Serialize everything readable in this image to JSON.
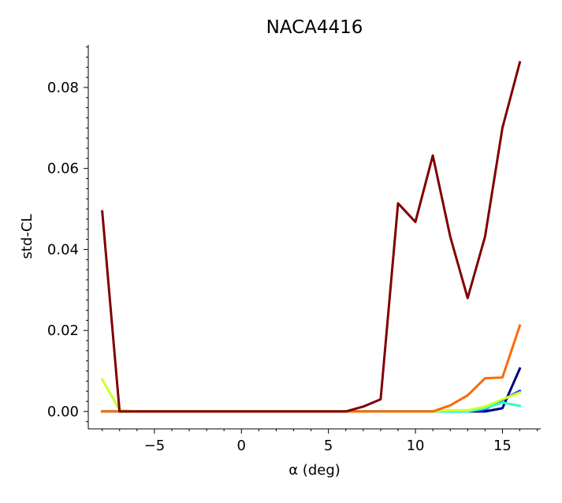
{
  "chart_data": {
    "type": "line",
    "title": "NACA4416",
    "xlabel": "α (deg)",
    "ylabel": "std-CL",
    "xlim": [
      -8.8,
      17.2
    ],
    "ylim": [
      -0.0043,
      0.0905
    ],
    "xticks": [
      -5,
      0,
      5,
      10,
      15
    ],
    "xtick_labels": [
      "−5",
      "0",
      "5",
      "10",
      "15"
    ],
    "yticks": [
      0.0,
      0.02,
      0.04,
      0.06,
      0.08
    ],
    "ytick_labels": [
      "0.00",
      "0.02",
      "0.04",
      "0.06",
      "0.08"
    ],
    "grid": false,
    "legend": "none",
    "series": [
      {
        "color": "#00007f",
        "x": [
          -8,
          -7,
          -6,
          -5,
          -4,
          -3,
          -2,
          -1,
          0,
          1,
          2,
          3,
          4,
          5,
          6,
          7,
          8,
          9,
          10,
          11,
          12,
          13,
          14,
          15,
          16
        ],
        "y": [
          0,
          0,
          0,
          0,
          0,
          0,
          0,
          0,
          0,
          0,
          0,
          0,
          0,
          0,
          0,
          0,
          0,
          0,
          0,
          0,
          0,
          0,
          0,
          0.0008,
          0.0106
        ]
      },
      {
        "color": "#0050ff",
        "x": [
          -8,
          -7,
          -6,
          -5,
          -4,
          -3,
          -2,
          -1,
          0,
          1,
          2,
          3,
          4,
          5,
          6,
          7,
          8,
          9,
          10,
          11,
          12,
          13,
          14,
          15,
          16
        ],
        "y": [
          0,
          0,
          0,
          0,
          0,
          0,
          0,
          0,
          0,
          0,
          0,
          0,
          0,
          0,
          0,
          0,
          0,
          0,
          0,
          0,
          0,
          0,
          0.0005,
          0.0028,
          0.0051
        ]
      },
      {
        "color": "#29ffce",
        "x": [
          -8,
          -7,
          -6,
          -5,
          -4,
          -3,
          -2,
          -1,
          0,
          1,
          2,
          3,
          4,
          5,
          6,
          7,
          8,
          9,
          10,
          11,
          12,
          13,
          14,
          15,
          16
        ],
        "y": [
          0,
          0,
          0,
          0,
          0,
          0,
          0,
          0,
          0,
          0,
          0,
          0,
          0,
          0,
          0,
          0,
          0,
          0,
          0,
          0,
          0,
          0,
          0.0008,
          0.0022,
          0.0014
        ]
      },
      {
        "color": "#ceff29",
        "x": [
          -8,
          -7,
          -6,
          -5,
          -4,
          -3,
          -2,
          -1,
          0,
          1,
          2,
          3,
          4,
          5,
          6,
          7,
          8,
          9,
          10,
          11,
          12,
          13,
          14,
          15,
          16
        ],
        "y": [
          0.0079,
          0.0004,
          0,
          0,
          0,
          0,
          0,
          0,
          0,
          0,
          0,
          0,
          0,
          0,
          0,
          0,
          0,
          0,
          0,
          0,
          0.0003,
          0.0003,
          0.0012,
          0.003,
          0.0047
        ]
      },
      {
        "color": "#ff6800",
        "x": [
          -8,
          -7,
          -6,
          -5,
          -4,
          -3,
          -2,
          -1,
          0,
          1,
          2,
          3,
          4,
          5,
          6,
          7,
          8,
          9,
          10,
          11,
          12,
          13,
          14,
          15,
          16
        ],
        "y": [
          0,
          0,
          0,
          0,
          0,
          0,
          0,
          0,
          0,
          0,
          0,
          0,
          0,
          0,
          0,
          0,
          0,
          0,
          0,
          0,
          0.0015,
          0.004,
          0.0082,
          0.0084,
          0.0212
        ]
      },
      {
        "color": "#7f0000",
        "x": [
          -8,
          -7,
          -6,
          -5,
          -4,
          -3,
          -2,
          -1,
          0,
          1,
          2,
          3,
          4,
          5,
          6,
          7,
          8,
          9,
          10,
          11,
          12,
          13,
          14,
          15,
          16
        ],
        "y": [
          0.0494,
          0,
          0,
          0,
          0,
          0,
          0,
          0,
          0,
          0,
          0,
          0,
          0,
          0,
          0,
          0.0012,
          0.003,
          0.0514,
          0.0468,
          0.0632,
          0.0432,
          0.028,
          0.0432,
          0.07,
          0.0862
        ]
      }
    ]
  }
}
